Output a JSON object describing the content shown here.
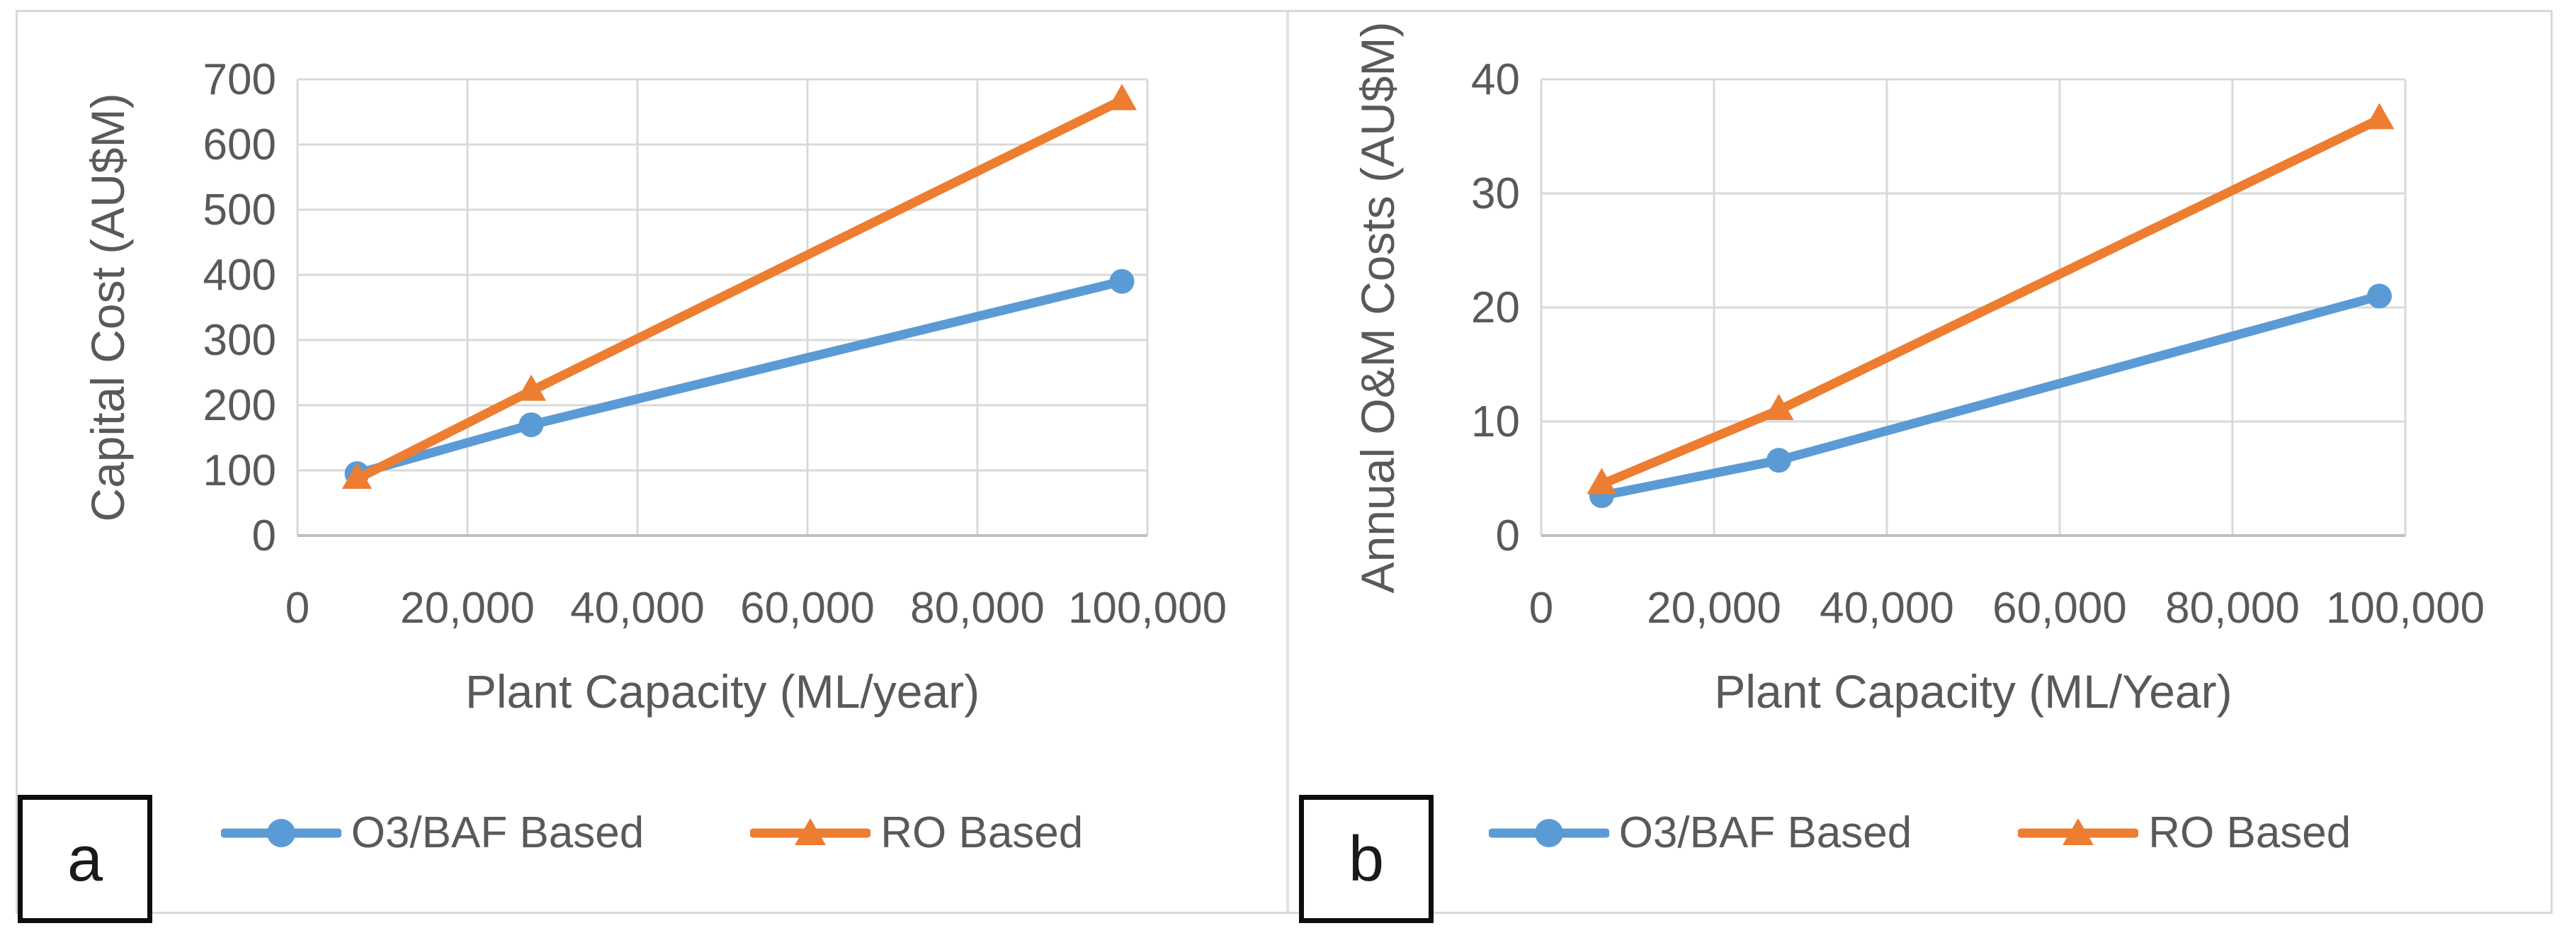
{
  "styles": {
    "grid_color": "#d9d9d9",
    "axis_color": "#bfbfbf",
    "text_color": "#595959",
    "background": "#ffffff",
    "border_color": "#d9d9d9",
    "panel_label_color": "#0d0d0d",
    "series_blue": "#5B9BD5",
    "series_orange": "#ED7D31"
  },
  "chart_data": [
    {
      "id": "a",
      "corner_label": "a",
      "type": "line",
      "title": "",
      "xlabel": "Plant Capacity (ML/year)",
      "ylabel": "Capital Cost (AU$M)",
      "xlim": [
        0,
        100000
      ],
      "ylim": [
        0,
        700
      ],
      "grid": true,
      "legend_position": "bottom",
      "x_tick_values": [
        0,
        20000,
        40000,
        60000,
        80000,
        100000
      ],
      "x_tick_labels": [
        "0",
        "20,000",
        "40,000",
        "60,000",
        "80,000",
        "100,000"
      ],
      "y_tick_values": [
        0,
        100,
        200,
        300,
        400,
        500,
        600,
        700
      ],
      "y_tick_labels": [
        "0",
        "100",
        "200",
        "300",
        "400",
        "500",
        "600",
        "700"
      ],
      "x": [
        7000,
        27500,
        97000
      ],
      "series": [
        {
          "name": "O3/BAF Based",
          "marker": "circle",
          "color": "#5B9BD5",
          "values": [
            95,
            170,
            390
          ]
        },
        {
          "name": "RO Based",
          "marker": "triangle",
          "color": "#ED7D31",
          "values": [
            87,
            222,
            668
          ]
        }
      ]
    },
    {
      "id": "b",
      "corner_label": "b",
      "type": "line",
      "title": "",
      "xlabel": "Plant Capacity (ML/Year)",
      "ylabel": "Annual O&M Costs (AU$M)",
      "xlim": [
        0,
        100000
      ],
      "ylim": [
        0,
        40
      ],
      "grid": true,
      "legend_position": "bottom",
      "x_tick_values": [
        0,
        20000,
        40000,
        60000,
        80000,
        100000
      ],
      "x_tick_labels": [
        "0",
        "20,000",
        "40,000",
        "60,000",
        "80,000",
        "100,000"
      ],
      "y_tick_values": [
        0,
        10,
        20,
        30,
        40
      ],
      "y_tick_labels": [
        "0",
        "10",
        "20",
        "30",
        "40"
      ],
      "x": [
        7000,
        27500,
        97000
      ],
      "series": [
        {
          "name": "O3/BAF Based",
          "marker": "circle",
          "color": "#5B9BD5",
          "values": [
            3.5,
            6.6,
            21
          ]
        },
        {
          "name": "RO Based",
          "marker": "triangle",
          "color": "#ED7D31",
          "values": [
            4.5,
            11,
            36.5
          ]
        }
      ]
    }
  ]
}
